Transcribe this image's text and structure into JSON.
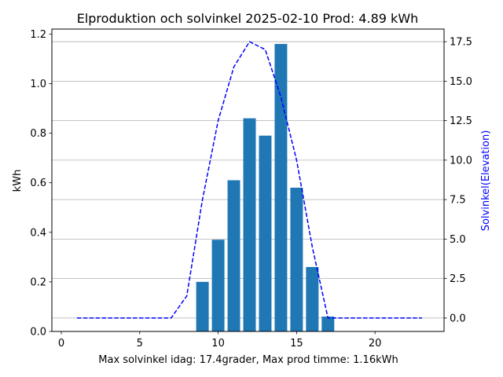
{
  "chart_data": {
    "type": "bar",
    "title": "Elproduktion och solvinkel 2025-02-10 Prod: 4.89 kWh",
    "xlabel": "Max solvinkel idag: 17.4grader, Max prod timme: 1.16kWh",
    "ylabel": "kWh",
    "y2label": "Solvinkel(Elevation)",
    "xlim": [
      -0.6,
      24.4
    ],
    "ylim": [
      0,
      1.22
    ],
    "y2lim": [
      -0.85,
      18.3
    ],
    "xticks": [
      "0",
      "5",
      "10",
      "15",
      "20"
    ],
    "yticks": [
      "0.0",
      "0.2",
      "0.4",
      "0.6",
      "0.8",
      "1.0",
      "1.2"
    ],
    "y2ticks": [
      "0.0",
      "2.5",
      "5.0",
      "7.5",
      "10.0",
      "12.5",
      "15.0",
      "17.5"
    ],
    "grid": "y2",
    "bars": {
      "name": "kWh",
      "color": "#1f77b4",
      "x": [
        9,
        10,
        11,
        12,
        13,
        14,
        15,
        16,
        17
      ],
      "values": [
        0.2,
        0.37,
        0.61,
        0.86,
        0.79,
        1.16,
        0.58,
        0.26,
        0.06
      ]
    },
    "line": {
      "name": "Solvinkel(Elevation)",
      "color": "#0000ff",
      "style": "dashed",
      "x": [
        1,
        2,
        3,
        4,
        5,
        6,
        7,
        8,
        9,
        10,
        11,
        12,
        13,
        14,
        15,
        16,
        17,
        18,
        19,
        20,
        21,
        22,
        23
      ],
      "values": [
        0,
        0,
        0,
        0,
        0,
        0,
        0,
        1.4,
        7.5,
        12.5,
        15.9,
        17.5,
        17.0,
        14.0,
        10.0,
        4.5,
        0,
        0,
        0,
        0,
        0,
        0,
        0
      ]
    }
  }
}
